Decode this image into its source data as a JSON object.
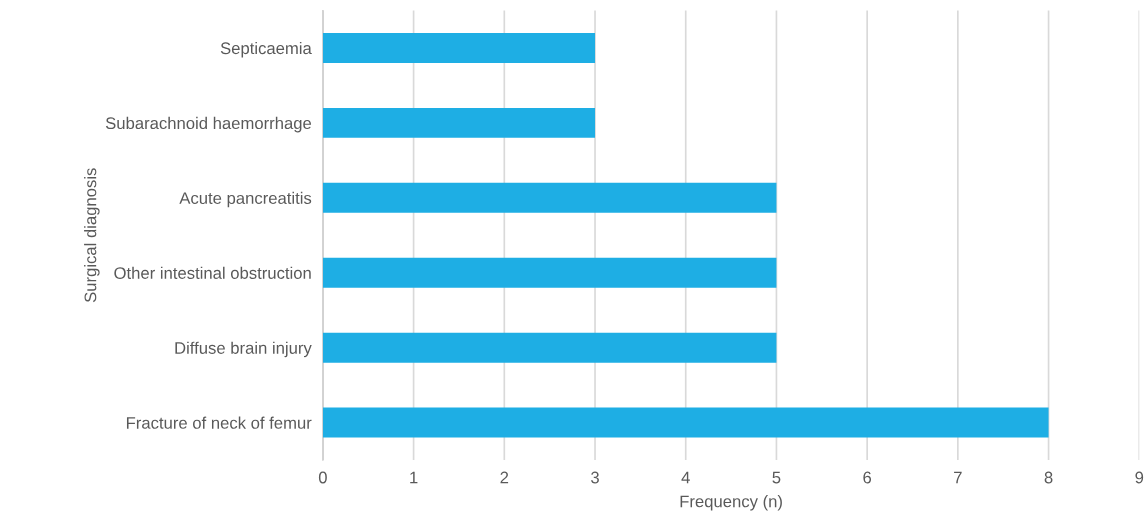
{
  "chart_data": {
    "type": "bar",
    "orientation": "horizontal",
    "xlabel": "Frequency (n)",
    "ylabel": "Surgical diagnosis",
    "categories": [
      "Septicaemia",
      "Subarachnoid haemorrhage",
      "Acute pancreatitis",
      "Other intestinal obstruction",
      "Diffuse brain injury",
      "Fracture of neck of femur"
    ],
    "values": [
      3,
      3,
      5,
      5,
      5,
      8
    ],
    "color": "#1eaee4",
    "xlim": [
      0,
      9
    ],
    "xticks": [
      0,
      1,
      2,
      3,
      4,
      5,
      6,
      7,
      8,
      9
    ],
    "grid": "x",
    "legend": false
  }
}
